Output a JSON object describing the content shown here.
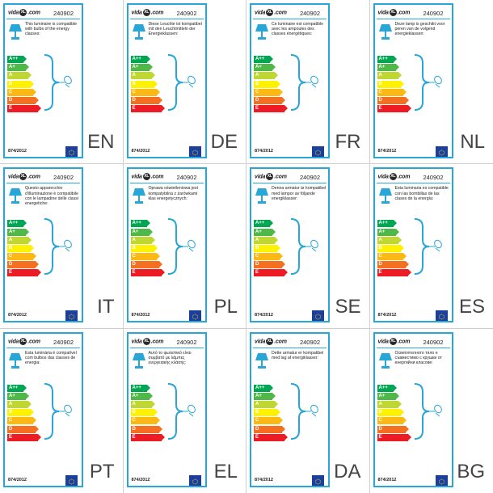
{
  "brand": {
    "pre": "vida",
    "mid": "XL",
    "post": ".com"
  },
  "code": "240902",
  "regulation": "874/2012",
  "classes": [
    {
      "label": "A++",
      "color": "#00a651",
      "width": 20
    },
    {
      "label": "A+",
      "color": "#50b848",
      "width": 23
    },
    {
      "label": "A",
      "color": "#bfd730",
      "width": 26
    },
    {
      "label": "B",
      "color": "#fff200",
      "width": 29
    },
    {
      "label": "C",
      "color": "#fdb913",
      "width": 32
    },
    {
      "label": "D",
      "color": "#f37021",
      "width": 35
    },
    {
      "label": "E",
      "color": "#ed1c24",
      "width": 38
    }
  ],
  "colors": {
    "frame": "#29a6d8",
    "eu_blue": "#1a3f9c",
    "eu_star": "#ffdd00"
  },
  "labels": [
    {
      "lang": "EN",
      "text": "This luminaire is compatible with bulbs of the energy classes:"
    },
    {
      "lang": "DE",
      "text": "Diese Leuchte ist kompatibel mit den Leuchtmitteln der Energieklassen:"
    },
    {
      "lang": "FR",
      "text": "Ce luminaire est compatible avec les ampoules des classes énergétiques:"
    },
    {
      "lang": "NL",
      "text": "Deze lamp is geschikt voor peren van de volgend energieklassen:"
    },
    {
      "lang": "IT",
      "text": "Questo apparecchio d'illuminazione è compatibile con le lampadine delle classi energetiche:"
    },
    {
      "lang": "PL",
      "text": "Oprawa oświetleniowa jest kompatybilna z żarówkami klas energetycznych:"
    },
    {
      "lang": "SE",
      "text": "Denna armatur är kompatibel med lampor av följande energiklasser:"
    },
    {
      "lang": "ES",
      "text": "Esta luminaria es compatible con las bombillas de las clases de la energía:"
    },
    {
      "lang": "PT",
      "text": "Esta luminária é compatível com bulbos das classes de energia:"
    },
    {
      "lang": "EL",
      "text": "Αυτό το φωτιστικό είναι συμβατό με λάμπες ενεργειακής κλάσης:"
    },
    {
      "lang": "DA",
      "text": "Dette armatur er kompatibel med lag af energiklasser:"
    },
    {
      "lang": "BG",
      "text": "Осветителното тяло е съвместимо с крушки от енергийни класове:"
    }
  ]
}
